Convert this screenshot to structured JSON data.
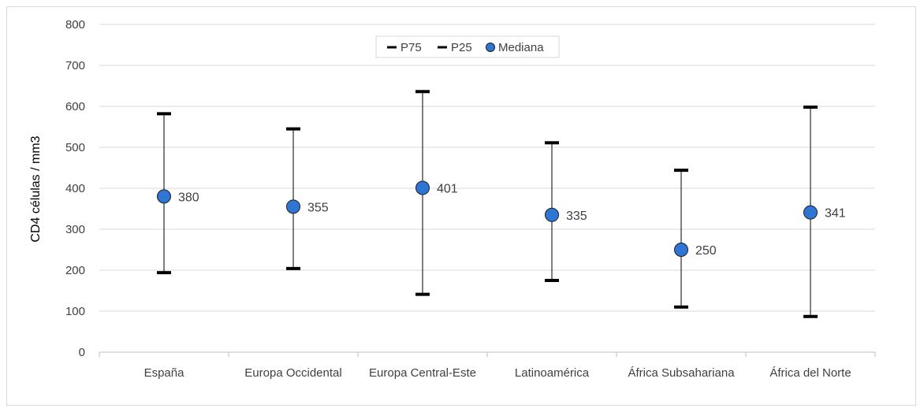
{
  "chart_data": {
    "type": "scatter",
    "ylabel": "CD4 células / mm3",
    "ylim": [
      0,
      800
    ],
    "ytick_step": 100,
    "grid": true,
    "legend_position": "top-center",
    "categories": [
      "España",
      "Europa Occidental",
      "Europa Central-Este",
      "Latinoamérica",
      "África Subsahariana",
      "África del Norte"
    ],
    "series": [
      {
        "name": "P75",
        "values": [
          582,
          545,
          636,
          511,
          444,
          598
        ]
      },
      {
        "name": "P25",
        "values": [
          194,
          204,
          141,
          175,
          110,
          87
        ]
      },
      {
        "name": "Mediana",
        "values": [
          380,
          355,
          401,
          335,
          250,
          341
        ]
      }
    ],
    "data_labels": [
      "380",
      "355",
      "401",
      "335",
      "250",
      "341"
    ],
    "colors": {
      "marker": "#2e75d4",
      "marker_edge": "#1f1f1f",
      "bar": "#000000",
      "grid": "#d9d9d9"
    }
  }
}
